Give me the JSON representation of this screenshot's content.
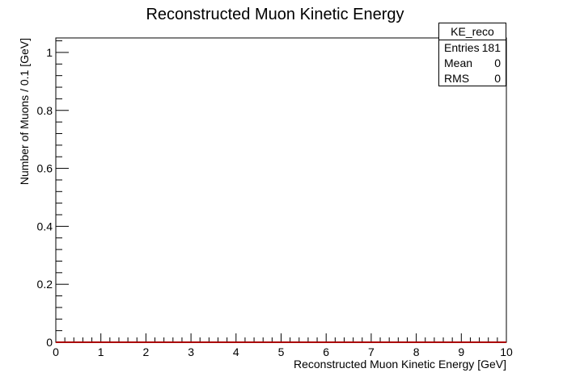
{
  "chart_data": {
    "type": "bar",
    "title": "Reconstructed Muon Kinetic Energy",
    "xlabel": "Reconstructed Muon Kinetic Energy [GeV]",
    "ylabel": "Number of Muons / 0.1 [GeV]",
    "xlim": [
      0,
      10
    ],
    "ylim": [
      0,
      1.05
    ],
    "x_ticks": [
      "0",
      "1",
      "2",
      "3",
      "4",
      "5",
      "6",
      "7",
      "8",
      "9",
      "10"
    ],
    "y_ticks": [
      "0",
      "0.2",
      "0.4",
      "0.6",
      "0.8",
      "1"
    ],
    "bin_width": 0.1,
    "values": [],
    "line_color": "#aa0000",
    "grid": false,
    "stats": {
      "name": "KE_reco",
      "rows": [
        {
          "label": "Entries",
          "value": "181"
        },
        {
          "label": "Mean",
          "value": "0"
        },
        {
          "label": "RMS",
          "value": "0"
        }
      ]
    }
  }
}
